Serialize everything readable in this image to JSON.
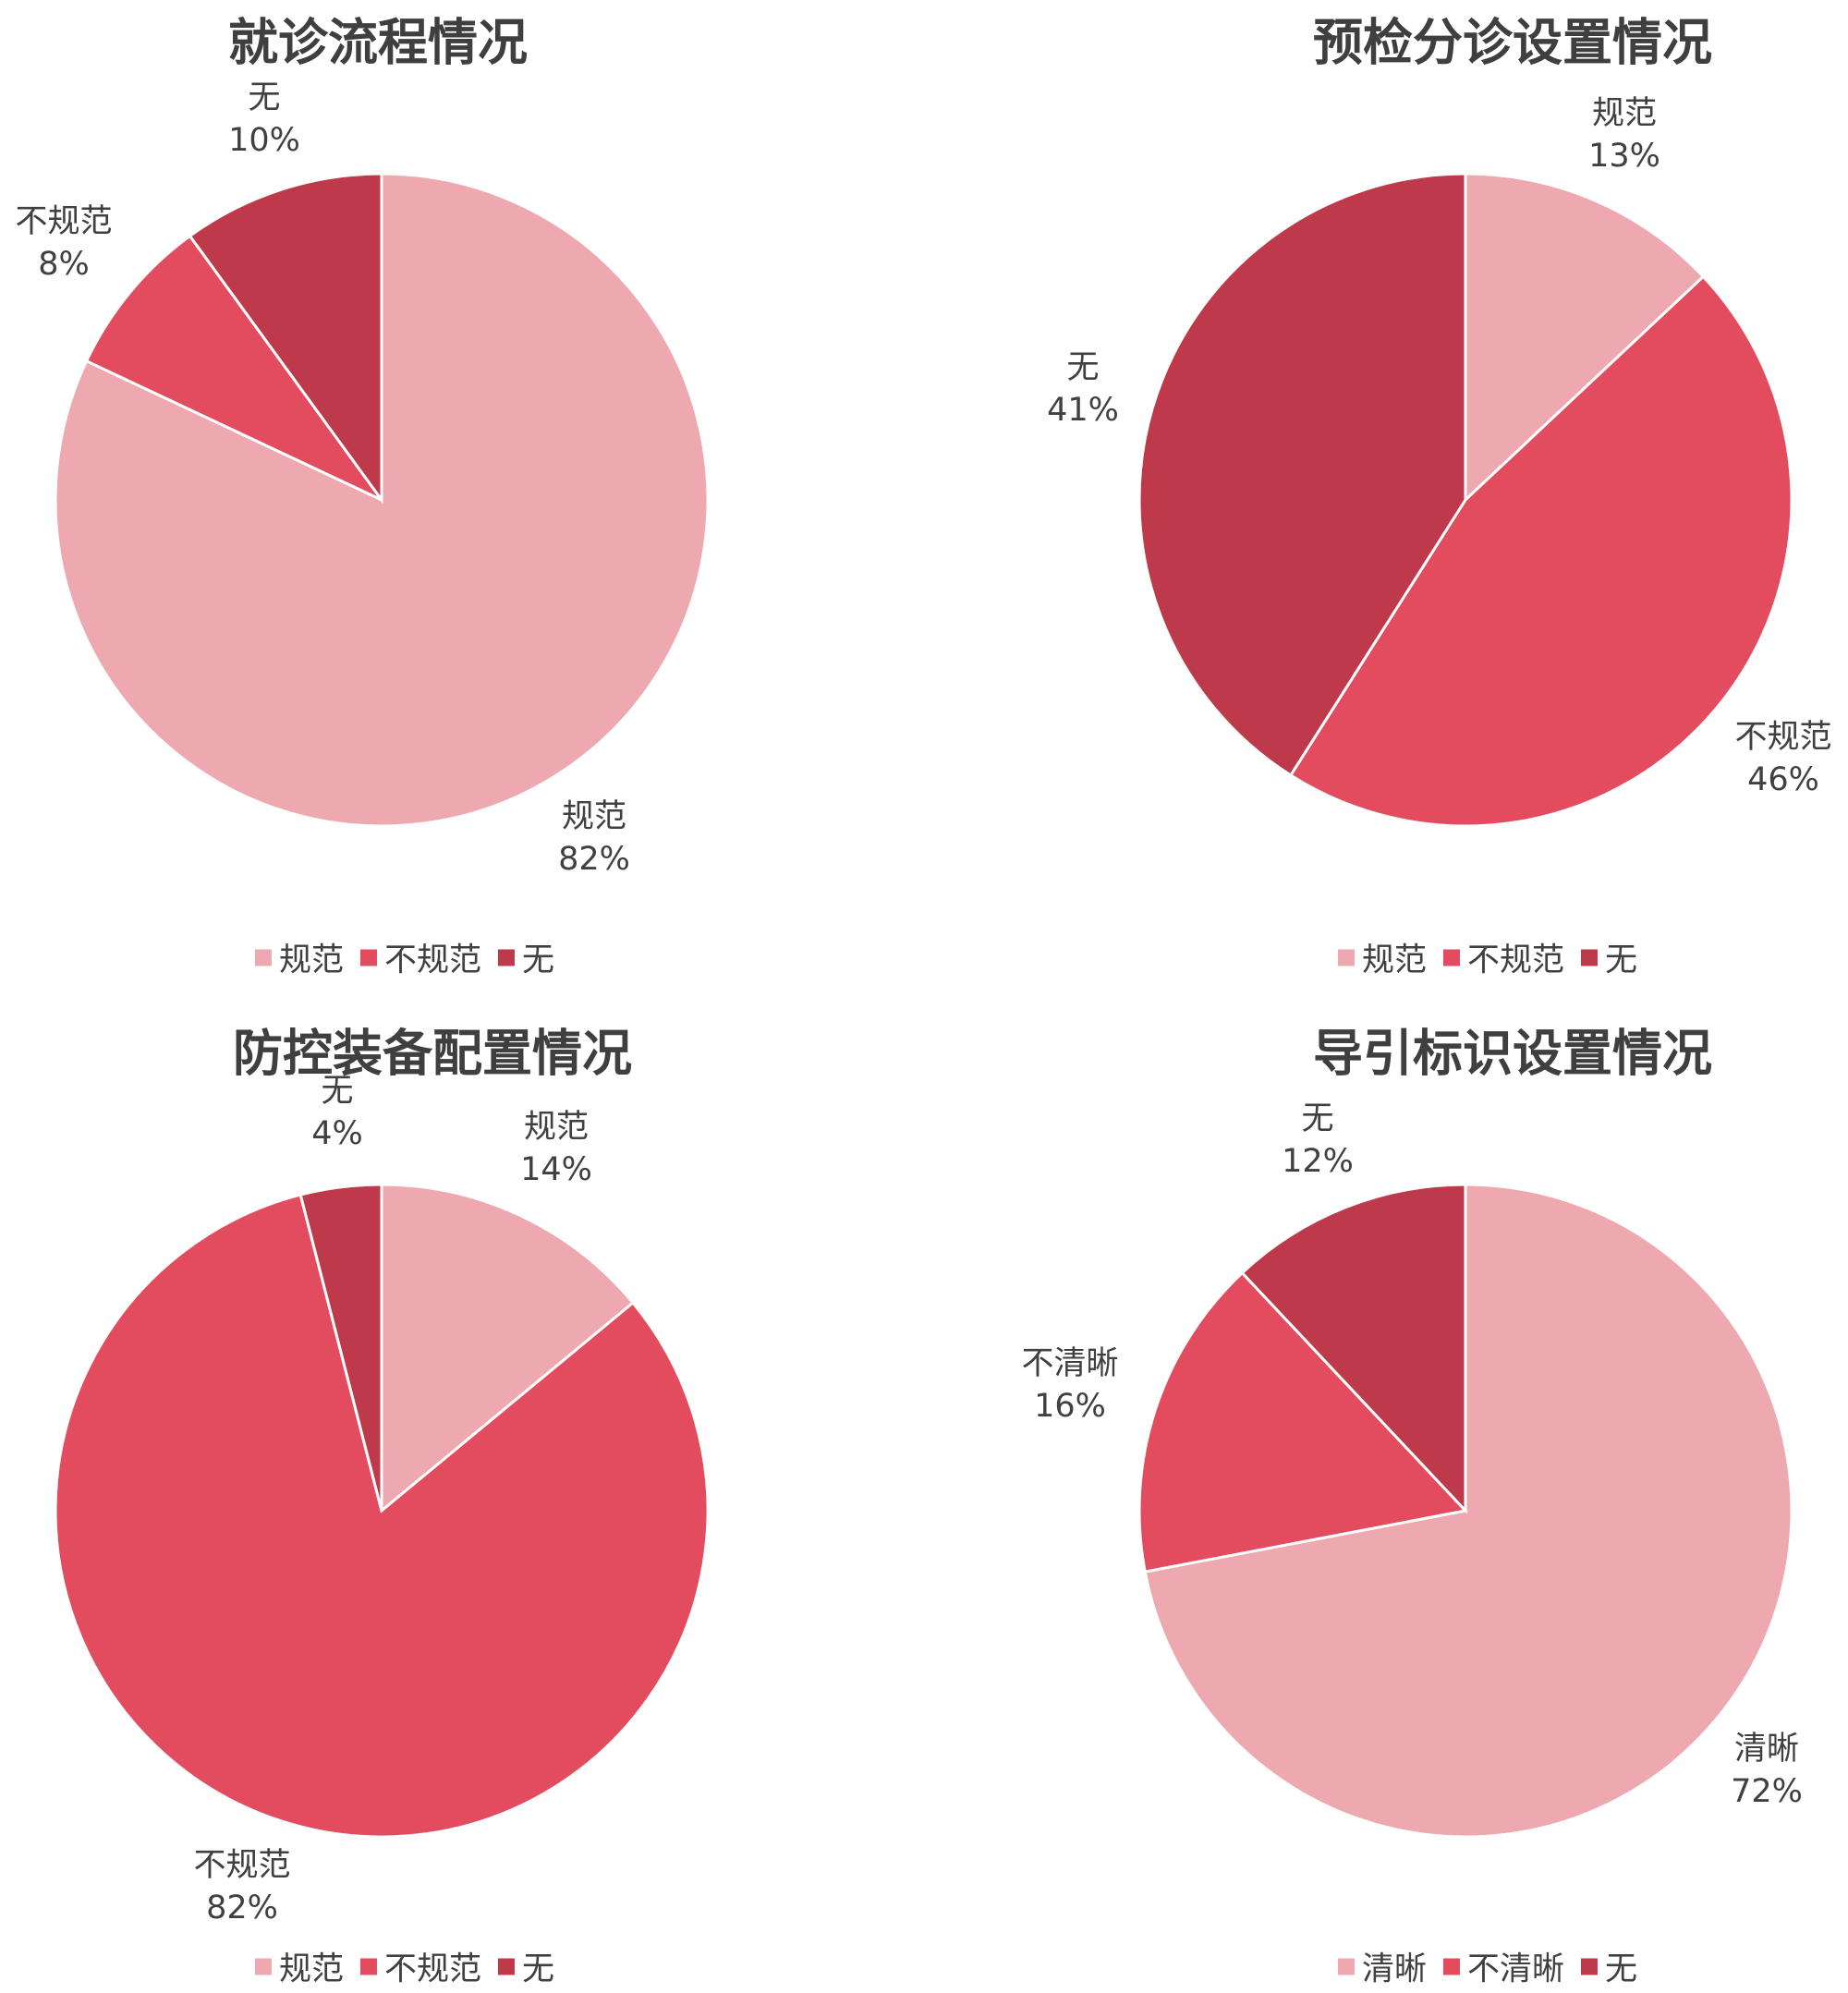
{
  "colors": {
    "c1": "#EEA8AF",
    "c2": "#E24C5E",
    "c3": "#BE3A4A"
  },
  "chart_data": [
    {
      "type": "pie",
      "title": "就诊流程情况",
      "categories": [
        "规范",
        "不规范",
        "无"
      ],
      "values": [
        82,
        8,
        10
      ],
      "labels": [
        "82%",
        "8%",
        "10%"
      ],
      "legend": "bottom"
    },
    {
      "type": "pie",
      "title": "预检分诊设置情况",
      "categories": [
        "规范",
        "不规范",
        "无"
      ],
      "values": [
        13,
        46,
        41
      ],
      "labels": [
        "13%",
        "46%",
        "41%"
      ],
      "legend": "bottom"
    },
    {
      "type": "pie",
      "title": "防控装备配置情况",
      "categories": [
        "规范",
        "不规范",
        "无"
      ],
      "values": [
        14,
        82,
        4
      ],
      "labels": [
        "14%",
        "82%",
        "4%"
      ],
      "legend": "bottom"
    },
    {
      "type": "pie",
      "title": "导引标识设置情况",
      "categories": [
        "清晰",
        "不清晰",
        "无"
      ],
      "values": [
        72,
        16,
        12
      ],
      "labels": [
        "72%",
        "16%",
        "12%"
      ],
      "legend": "bottom"
    }
  ]
}
